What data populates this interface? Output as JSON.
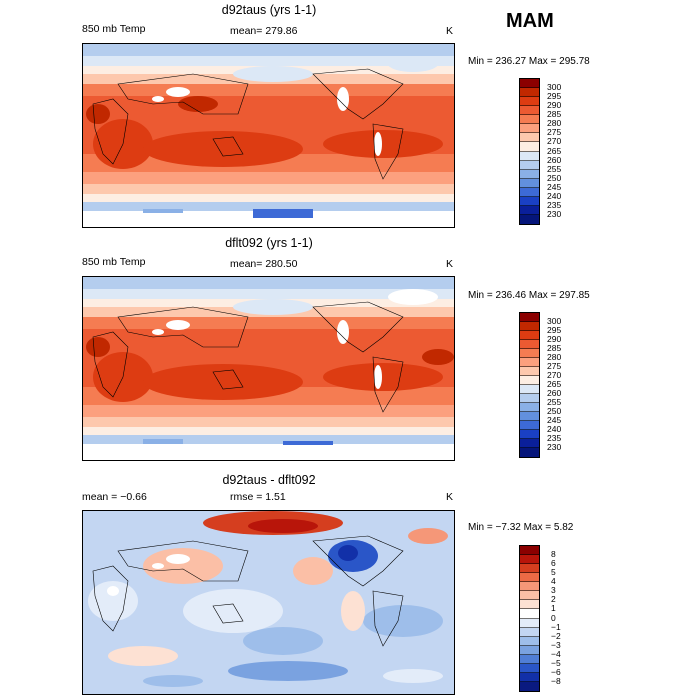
{
  "season": "MAM",
  "panels": [
    {
      "title": "d92taus (yrs 1-1)",
      "left_label": "850 mb Temp",
      "center_label": "mean= 279.86",
      "units": "K",
      "minmax": "Min = 236.27 Max = 295.78",
      "levels": [
        "300",
        "295",
        "290",
        "285",
        "280",
        "275",
        "270",
        "265",
        "260",
        "255",
        "250",
        "245",
        "240",
        "235",
        "230"
      ]
    },
    {
      "title": "dflt092 (yrs 1-1)",
      "left_label": "850 mb Temp",
      "center_label": "mean= 280.50",
      "units": "K",
      "minmax": "Min = 236.46 Max = 297.85",
      "levels": [
        "300",
        "295",
        "290",
        "285",
        "280",
        "275",
        "270",
        "265",
        "260",
        "255",
        "250",
        "245",
        "240",
        "235",
        "230"
      ]
    },
    {
      "title": "d92taus - dflt092",
      "left_label": "mean =  −0.66",
      "center_label": "rmse =   1.51",
      "units": "K",
      "minmax": "Min =  −7.32 Max =   5.82",
      "levels": [
        "8",
        "6",
        "5",
        "4",
        "3",
        "2",
        "1",
        "0",
        "−1",
        "−2",
        "−3",
        "−4",
        "−5",
        "−6",
        "−8"
      ]
    }
  ],
  "colors": {
    "temp": [
      "#8b0000",
      "#c12800",
      "#dd3c12",
      "#ec5a32",
      "#f57c52",
      "#fca07e",
      "#fdc8ad",
      "#fdeee3",
      "#dce8f6",
      "#b4cdee",
      "#8ab0e6",
      "#6290de",
      "#3d6ad6",
      "#1a40c4",
      "#0a1f9a",
      "#05157a"
    ],
    "diff": [
      "#8b0000",
      "#b8150a",
      "#d53e1f",
      "#ec6a45",
      "#f59778",
      "#fbbfa6",
      "#fde1d3",
      "#ffffff",
      "#e3ecf9",
      "#c3d6f2",
      "#9ebeea",
      "#7aa2e0",
      "#507ed6",
      "#2a56c8",
      "#1230a8",
      "#0a1a80"
    ]
  }
}
